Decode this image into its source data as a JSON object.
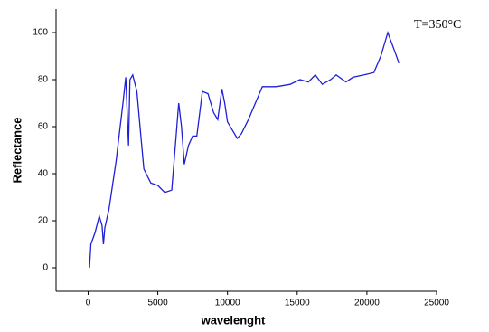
{
  "chart_data": {
    "type": "line",
    "annotation": "T=350°C",
    "xlabel": "wavelenght",
    "ylabel": "Reflectance",
    "x": [
      100,
      200,
      500,
      800,
      1000,
      1100,
      1200,
      1500,
      2000,
      2500,
      2700,
      2900,
      3000,
      3200,
      3500,
      3800,
      4000,
      4500,
      5000,
      5500,
      6000,
      6300,
      6500,
      6700,
      6900,
      7200,
      7500,
      7800,
      8200,
      8600,
      9000,
      9300,
      9600,
      9800,
      10000,
      10400,
      10700,
      11000,
      11500,
      12000,
      12500,
      13500,
      14500,
      15200,
      15800,
      16300,
      16800,
      17400,
      17800,
      18500,
      19000,
      19800,
      20500,
      21000,
      21500,
      22000,
      22300
    ],
    "series": [
      {
        "name": "Reflectance",
        "color": "#1f1fd6",
        "values": [
          0,
          10,
          15,
          22,
          18,
          10,
          17,
          25,
          45,
          70,
          81,
          52,
          80,
          82,
          75,
          55,
          42,
          36,
          35,
          32,
          33,
          55,
          70,
          60,
          44,
          52,
          56,
          56,
          75,
          74,
          66,
          63,
          76,
          70,
          62,
          58,
          55,
          57,
          63,
          70,
          77,
          77,
          78,
          80,
          79,
          82,
          78,
          80,
          82,
          79,
          81,
          82,
          83,
          90,
          100,
          92,
          87
        ]
      }
    ],
    "xlim": [
      -2300,
      25000
    ],
    "xticks": [
      0,
      5000,
      10000,
      15000,
      20000,
      25000
    ],
    "ylim": [
      -10,
      110
    ],
    "yticks": [
      0,
      20,
      40,
      60,
      80,
      100
    ]
  }
}
